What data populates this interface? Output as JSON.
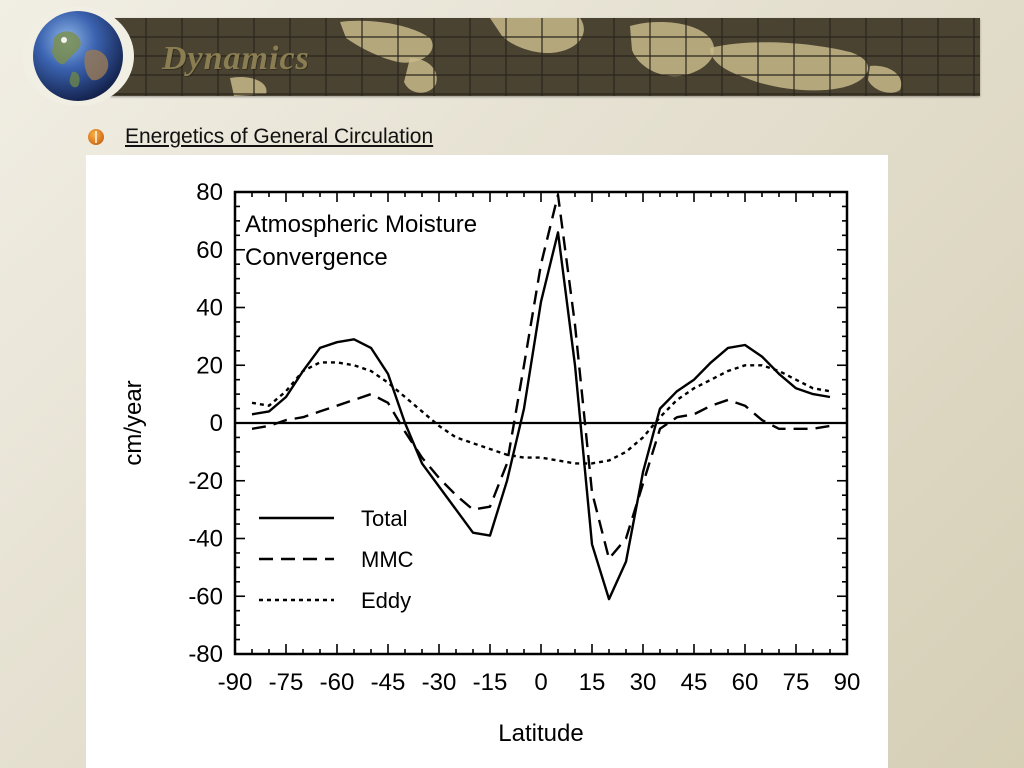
{
  "header": {
    "title": "Dynamics",
    "logo_icon": "globe-icon",
    "banner_icon": "world-map-grid"
  },
  "bullet": {
    "icon": "orange-bullet-icon",
    "text": "Energetics of General Circulation"
  },
  "chart_data": {
    "type": "line",
    "title": [
      "Atmospheric Moisture",
      "Convergence"
    ],
    "xlabel": "Latitude",
    "ylabel": "cm/year",
    "xlim": [
      -90,
      90
    ],
    "ylim": [
      -80,
      80
    ],
    "xticks": [
      -90,
      -75,
      -60,
      -45,
      -30,
      -15,
      0,
      15,
      30,
      45,
      60,
      75,
      90
    ],
    "yticks": [
      80,
      60,
      40,
      20,
      0,
      -20,
      -40,
      -60,
      -80
    ],
    "zero_line": true,
    "legend_position": "lower-left",
    "series": [
      {
        "name": "Total",
        "style": "solid",
        "x": [
          -85,
          -80,
          -75,
          -70,
          -65,
          -60,
          -55,
          -50,
          -45,
          -40,
          -35,
          -30,
          -25,
          -20,
          -15,
          -10,
          -5,
          0,
          5,
          10,
          15,
          20,
          25,
          30,
          35,
          40,
          45,
          50,
          55,
          60,
          65,
          70,
          75,
          80,
          85
        ],
        "y": [
          3,
          4,
          9,
          18,
          26,
          28,
          29,
          26,
          17,
          0,
          -14,
          -22,
          -30,
          -38,
          -39,
          -20,
          5,
          42,
          66,
          20,
          -42,
          -61,
          -48,
          -17,
          5,
          11,
          15,
          21,
          26,
          27,
          23,
          17,
          12,
          10,
          9
        ]
      },
      {
        "name": "MMC",
        "style": "dashed",
        "x": [
          -85,
          -80,
          -75,
          -70,
          -65,
          -60,
          -55,
          -50,
          -45,
          -40,
          -35,
          -30,
          -25,
          -20,
          -15,
          -10,
          -5,
          0,
          5,
          10,
          15,
          20,
          25,
          30,
          35,
          40,
          45,
          50,
          55,
          60,
          65,
          70,
          75,
          80,
          85
        ],
        "y": [
          -2,
          -1,
          1,
          2,
          4,
          6,
          8,
          10,
          7,
          -3,
          -12,
          -19,
          -25,
          -30,
          -29,
          -14,
          20,
          55,
          79,
          34,
          -24,
          -47,
          -40,
          -21,
          -2,
          2,
          3,
          6,
          8,
          6,
          1,
          -2,
          -2,
          -2,
          -1
        ]
      },
      {
        "name": "Eddy",
        "style": "dotted",
        "x": [
          -85,
          -80,
          -75,
          -70,
          -65,
          -60,
          -55,
          -50,
          -45,
          -40,
          -35,
          -30,
          -25,
          -20,
          -15,
          -10,
          -5,
          0,
          5,
          10,
          15,
          20,
          25,
          30,
          35,
          40,
          45,
          50,
          55,
          60,
          65,
          70,
          75,
          80,
          85
        ],
        "y": [
          7,
          6,
          11,
          18,
          21,
          21,
          20,
          18,
          14,
          9,
          4,
          -1,
          -5,
          -7,
          -9,
          -11,
          -12,
          -12,
          -13,
          -14,
          -14,
          -13,
          -10,
          -5,
          2,
          8,
          12,
          15,
          18,
          20,
          20,
          18,
          15,
          12,
          11
        ]
      }
    ]
  }
}
